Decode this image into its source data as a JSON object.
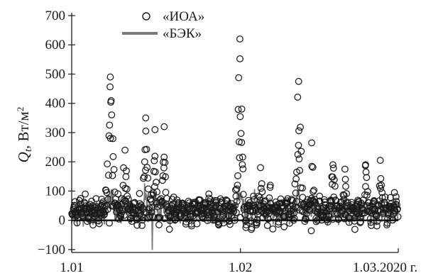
{
  "chart_data": {
    "type": "scatter",
    "ylabel": {
      "symbol": "Q",
      "subscript": "t",
      "unit_pre": ", Вт/м",
      "unit_sup": "2"
    },
    "ylim": [
      -110,
      700
    ],
    "yticks": [
      -100,
      0,
      100,
      200,
      300,
      400,
      500,
      600,
      700
    ],
    "x_range_days": [
      0,
      60
    ],
    "xticks": [
      {
        "day": 0,
        "label": "1.01"
      },
      {
        "day": 31,
        "label": "1.02"
      },
      {
        "day": 60,
        "label": "1.03.2020 г."
      }
    ],
    "zero_line": true,
    "legend_position": "top-left",
    "series": [
      {
        "name": "«ИОА»",
        "marker": "open-circle",
        "color": "#1a1a1a",
        "peaks": [
          {
            "day": 7.1,
            "value": 490
          },
          {
            "day": 9.8,
            "value": 240
          },
          {
            "day": 13.6,
            "value": 350
          },
          {
            "day": 15.3,
            "value": 310
          },
          {
            "day": 17.0,
            "value": 320
          },
          {
            "day": 25.2,
            "value": 90
          },
          {
            "day": 30.9,
            "value": 620
          },
          {
            "day": 34.7,
            "value": 180
          },
          {
            "day": 36.5,
            "value": 120
          },
          {
            "day": 41.7,
            "value": 475
          },
          {
            "day": 44.1,
            "value": 265
          },
          {
            "day": 48.0,
            "value": 190
          },
          {
            "day": 50.2,
            "value": 175
          },
          {
            "day": 54.0,
            "value": 190
          },
          {
            "day": 56.7,
            "value": 205
          },
          {
            "day": 59.3,
            "value": 95
          }
        ]
      },
      {
        "name": "«БЭК»",
        "marker": "line",
        "color": "#7a7a7a",
        "extremes": [
          {
            "day": 14.8,
            "value": -100
          },
          {
            "day": 13.4,
            "value": 125
          },
          {
            "day": 33.6,
            "value": 105
          }
        ]
      }
    ]
  }
}
